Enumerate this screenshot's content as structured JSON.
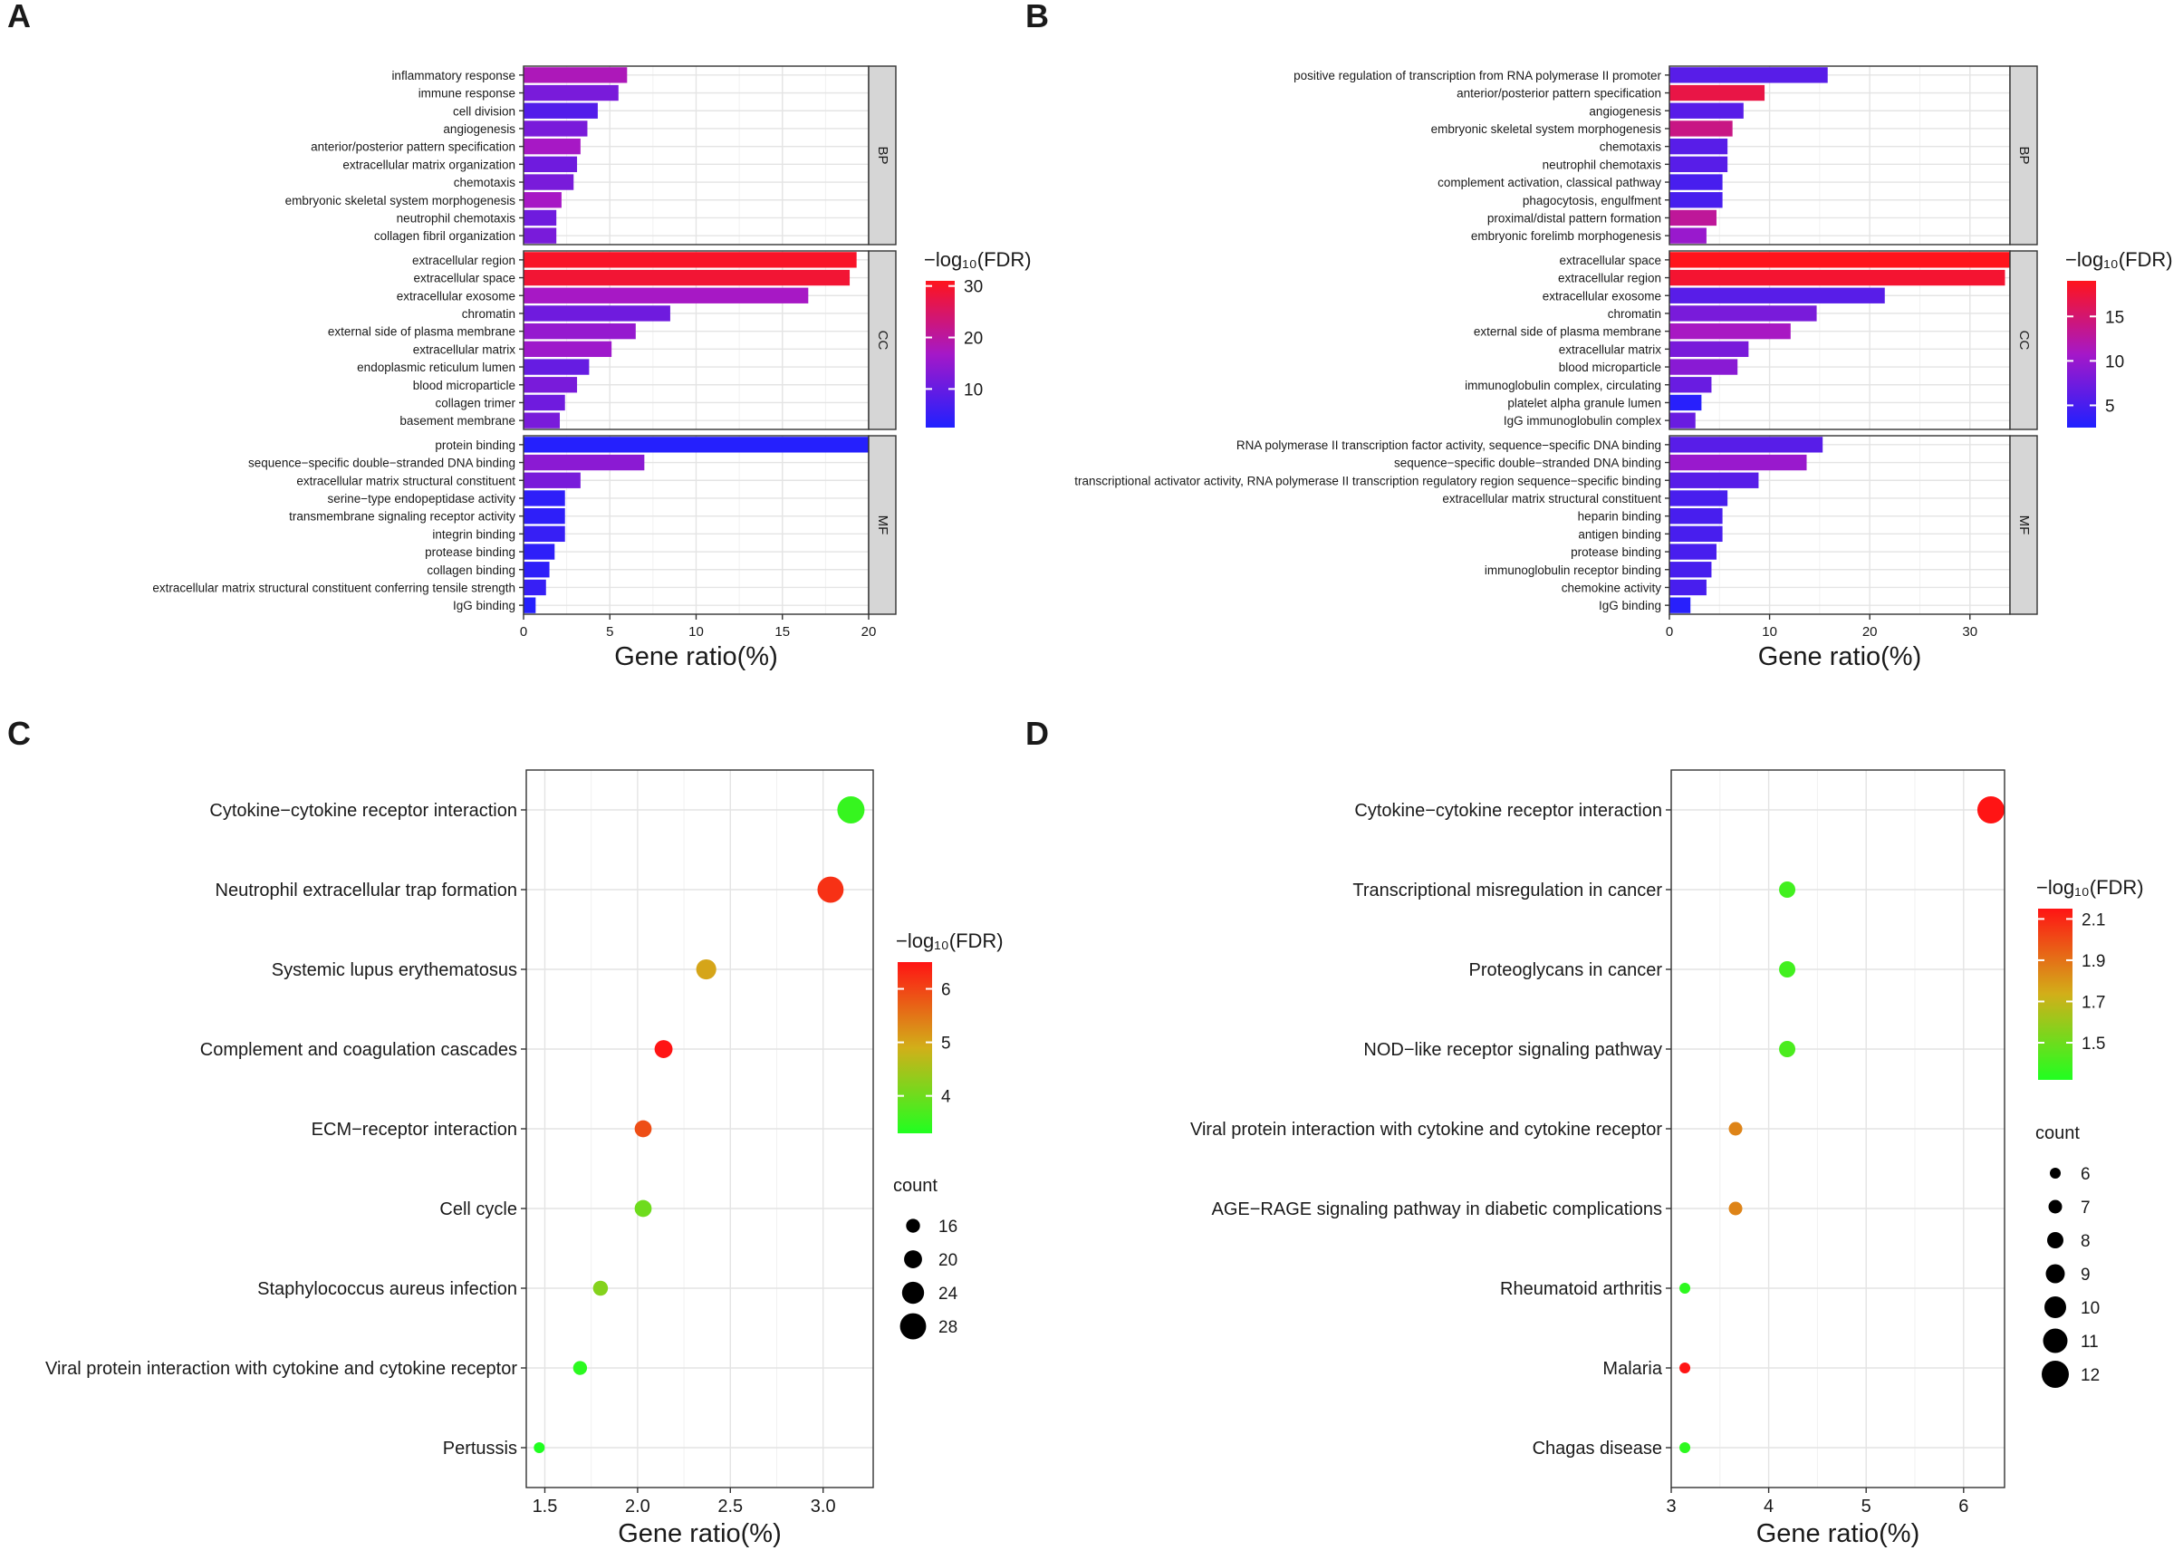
{
  "panels": [
    {
      "label": "A",
      "chart_data": {
        "type": "bar",
        "orientation": "horizontal",
        "xlabel": "Gene ratio(%)",
        "xlim": [
          0,
          20
        ],
        "xticks": [
          0,
          5,
          10,
          15,
          20
        ],
        "color_legend": {
          "title": "−log₁₀(FDR)",
          "range": [
            2.5,
            31
          ],
          "ticks": [
            10,
            20,
            30
          ]
        },
        "facets": [
          {
            "name": "BP",
            "items": [
              {
                "term": "inflammatory response",
                "ratio": 6.0,
                "log_fdr": 18
              },
              {
                "term": "immune response",
                "ratio": 5.5,
                "log_fdr": 12
              },
              {
                "term": "cell division",
                "ratio": 4.3,
                "log_fdr": 8
              },
              {
                "term": "angiogenesis",
                "ratio": 3.7,
                "log_fdr": 12
              },
              {
                "term": "anterior/posterior pattern specification",
                "ratio": 3.3,
                "log_fdr": 17
              },
              {
                "term": "extracellular matrix organization",
                "ratio": 3.1,
                "log_fdr": 11
              },
              {
                "term": "chemotaxis",
                "ratio": 2.9,
                "log_fdr": 12
              },
              {
                "term": "embryonic skeletal system morphogenesis",
                "ratio": 2.2,
                "log_fdr": 17
              },
              {
                "term": "neutrophil chemotaxis",
                "ratio": 1.9,
                "log_fdr": 11
              },
              {
                "term": "collagen fibril organization",
                "ratio": 1.9,
                "log_fdr": 12
              }
            ]
          },
          {
            "name": "CC",
            "items": [
              {
                "term": "extracellular region",
                "ratio": 19.3,
                "log_fdr": 30
              },
              {
                "term": "extracellular space",
                "ratio": 18.9,
                "log_fdr": 29
              },
              {
                "term": "extracellular exosome",
                "ratio": 16.5,
                "log_fdr": 17
              },
              {
                "term": "chromatin",
                "ratio": 8.5,
                "log_fdr": 11
              },
              {
                "term": "external side of plasma membrane",
                "ratio": 6.5,
                "log_fdr": 15
              },
              {
                "term": "extracellular matrix",
                "ratio": 5.1,
                "log_fdr": 16
              },
              {
                "term": "endoplasmic reticulum lumen",
                "ratio": 3.8,
                "log_fdr": 10
              },
              {
                "term": "blood microparticle",
                "ratio": 3.1,
                "log_fdr": 12
              },
              {
                "term": "collagen trimer",
                "ratio": 2.4,
                "log_fdr": 11
              },
              {
                "term": "basement membrane",
                "ratio": 2.1,
                "log_fdr": 12
              }
            ]
          },
          {
            "name": "MF",
            "items": [
              {
                "term": "protein binding",
                "ratio": 20.0,
                "log_fdr": 3
              },
              {
                "term": "sequence−specific double−stranded DNA binding",
                "ratio": 7.0,
                "log_fdr": 14
              },
              {
                "term": "extracellular matrix structural constituent",
                "ratio": 3.3,
                "log_fdr": 12
              },
              {
                "term": "serine−type endopeptidase activity",
                "ratio": 2.4,
                "log_fdr": 4
              },
              {
                "term": "transmembrane signaling receptor activity",
                "ratio": 2.4,
                "log_fdr": 4
              },
              {
                "term": "integrin binding",
                "ratio": 2.4,
                "log_fdr": 5
              },
              {
                "term": "protease binding",
                "ratio": 1.8,
                "log_fdr": 4
              },
              {
                "term": "collagen binding",
                "ratio": 1.5,
                "log_fdr": 4
              },
              {
                "term": "extracellular matrix structural constituent conferring tensile strength",
                "ratio": 1.3,
                "log_fdr": 5
              },
              {
                "term": "IgG binding",
                "ratio": 0.7,
                "log_fdr": 3
              }
            ]
          }
        ]
      }
    },
    {
      "label": "B",
      "chart_data": {
        "type": "bar",
        "orientation": "horizontal",
        "xlabel": "Gene ratio(%)",
        "xlim": [
          0,
          34
        ],
        "xticks": [
          0,
          10,
          20,
          30
        ],
        "color_legend": {
          "title": "−log₁₀(FDR)",
          "range": [
            2.5,
            19
          ],
          "ticks": [
            5,
            10,
            15
          ]
        },
        "facets": [
          {
            "name": "BP",
            "items": [
              {
                "term": "positive regulation of transcription from RNA polymerase II promoter",
                "ratio": 15.8,
                "log_fdr": 6
              },
              {
                "term": "anterior/posterior pattern specification",
                "ratio": 9.5,
                "log_fdr": 17
              },
              {
                "term": "angiogenesis",
                "ratio": 7.4,
                "log_fdr": 6
              },
              {
                "term": "embryonic skeletal system morphogenesis",
                "ratio": 6.3,
                "log_fdr": 14
              },
              {
                "term": "chemotaxis",
                "ratio": 5.8,
                "log_fdr": 6
              },
              {
                "term": "neutrophil chemotaxis",
                "ratio": 5.8,
                "log_fdr": 6
              },
              {
                "term": "complement activation, classical pathway",
                "ratio": 5.3,
                "log_fdr": 5
              },
              {
                "term": "phagocytosis, engulfment",
                "ratio": 5.3,
                "log_fdr": 5
              },
              {
                "term": "proximal/distal pattern formation",
                "ratio": 4.7,
                "log_fdr": 13
              },
              {
                "term": "embryonic forelimb morphogenesis",
                "ratio": 3.7,
                "log_fdr": 10
              }
            ]
          },
          {
            "name": "CC",
            "items": [
              {
                "term": "extracellular space",
                "ratio": 34.0,
                "log_fdr": 19
              },
              {
                "term": "extracellular region",
                "ratio": 33.5,
                "log_fdr": 18
              },
              {
                "term": "extracellular exosome",
                "ratio": 21.5,
                "log_fdr": 6
              },
              {
                "term": "chromatin",
                "ratio": 14.7,
                "log_fdr": 8
              },
              {
                "term": "external side of plasma membrane",
                "ratio": 12.1,
                "log_fdr": 11
              },
              {
                "term": "extracellular matrix",
                "ratio": 7.9,
                "log_fdr": 8
              },
              {
                "term": "blood microparticle",
                "ratio": 6.8,
                "log_fdr": 9
              },
              {
                "term": "immunoglobulin complex, circulating",
                "ratio": 4.2,
                "log_fdr": 7
              },
              {
                "term": "platelet alpha granule lumen",
                "ratio": 3.2,
                "log_fdr": 3
              },
              {
                "term": "IgG immunoglobulin complex",
                "ratio": 2.6,
                "log_fdr": 7
              }
            ]
          },
          {
            "name": "MF",
            "items": [
              {
                "term": "RNA polymerase II transcription factor activity, sequence−specific DNA binding",
                "ratio": 15.3,
                "log_fdr": 6
              },
              {
                "term": "sequence−specific double−stranded DNA binding",
                "ratio": 13.7,
                "log_fdr": 10
              },
              {
                "term": "transcriptional activator activity, RNA polymerase II transcription regulatory region sequence−specific binding",
                "ratio": 8.9,
                "log_fdr": 6
              },
              {
                "term": "extracellular matrix structural constituent",
                "ratio": 5.8,
                "log_fdr": 5
              },
              {
                "term": "heparin binding",
                "ratio": 5.3,
                "log_fdr": 5
              },
              {
                "term": "antigen binding",
                "ratio": 5.3,
                "log_fdr": 5
              },
              {
                "term": "protease binding",
                "ratio": 4.7,
                "log_fdr": 5
              },
              {
                "term": "immunoglobulin receptor binding",
                "ratio": 4.2,
                "log_fdr": 5
              },
              {
                "term": "chemokine activity",
                "ratio": 3.7,
                "log_fdr": 5
              },
              {
                "term": "IgG binding",
                "ratio": 2.1,
                "log_fdr": 3
              }
            ]
          }
        ]
      }
    },
    {
      "label": "C",
      "chart_data": {
        "type": "scatter",
        "xlabel": "Gene ratio(%)",
        "xlim": [
          1.4,
          3.27
        ],
        "xticks": [
          1.5,
          2.0,
          2.5,
          3.0
        ],
        "tick_labels": [
          "1.5",
          "2.0",
          "2.5",
          "3.0"
        ],
        "color_legend": {
          "title": "−log₁₀(FDR)",
          "range": [
            3.3,
            6.5
          ],
          "ticks": [
            4,
            5,
            6
          ]
        },
        "size_legend": {
          "title": "count",
          "values": [
            16,
            20,
            24,
            28
          ]
        },
        "points": [
          {
            "term": "Cytokine−cytokine receptor interaction",
            "ratio": 3.15,
            "log_fdr": 3.5,
            "count": 29
          },
          {
            "term": "Neutrophil extracellular trap formation",
            "ratio": 3.04,
            "log_fdr": 6.2,
            "count": 28
          },
          {
            "term": "Systemic lupus erythematosus",
            "ratio": 2.37,
            "log_fdr": 5.0,
            "count": 22
          },
          {
            "term": "Complement and coagulation cascades",
            "ratio": 2.14,
            "log_fdr": 6.5,
            "count": 20
          },
          {
            "term": "ECM−receptor interaction",
            "ratio": 2.03,
            "log_fdr": 5.9,
            "count": 19
          },
          {
            "term": "Cell cycle",
            "ratio": 2.03,
            "log_fdr": 4.0,
            "count": 19
          },
          {
            "term": "Staphylococcus aureus infection",
            "ratio": 1.8,
            "log_fdr": 4.2,
            "count": 17
          },
          {
            "term": "Viral protein interaction with cytokine and cytokine receptor",
            "ratio": 1.69,
            "log_fdr": 3.4,
            "count": 16
          },
          {
            "term": "Pertussis",
            "ratio": 1.47,
            "log_fdr": 3.3,
            "count": 13
          }
        ]
      }
    },
    {
      "label": "D",
      "chart_data": {
        "type": "scatter",
        "xlabel": "Gene ratio(%)",
        "xlim": [
          3.0,
          6.42
        ],
        "xticks": [
          3,
          4,
          5,
          6
        ],
        "tick_labels": [
          "3",
          "4",
          "5",
          "6"
        ],
        "color_legend": {
          "title": "−log₁₀(FDR)",
          "range": [
            1.32,
            2.15
          ],
          "ticks": [
            1.5,
            1.7,
            1.9,
            2.1
          ]
        },
        "size_legend": {
          "title": "count",
          "values": [
            6,
            7,
            8,
            9,
            10,
            11,
            12
          ]
        },
        "points": [
          {
            "term": "Cytokine−cytokine receptor interaction",
            "ratio": 6.28,
            "log_fdr": 2.15,
            "count": 12
          },
          {
            "term": "Transcriptional misregulation in cancer",
            "ratio": 4.19,
            "log_fdr": 1.4,
            "count": 8
          },
          {
            "term": "Proteoglycans in cancer",
            "ratio": 4.19,
            "log_fdr": 1.4,
            "count": 8
          },
          {
            "term": "NOD−like receptor signaling pathway",
            "ratio": 4.19,
            "log_fdr": 1.42,
            "count": 8
          },
          {
            "term": "Viral protein interaction with cytokine and cytokine receptor",
            "ratio": 3.66,
            "log_fdr": 1.85,
            "count": 7
          },
          {
            "term": "AGE−RAGE signaling pathway in diabetic complications",
            "ratio": 3.66,
            "log_fdr": 1.85,
            "count": 7
          },
          {
            "term": "Rheumatoid arthritis",
            "ratio": 3.14,
            "log_fdr": 1.35,
            "count": 6
          },
          {
            "term": "Malaria",
            "ratio": 3.14,
            "log_fdr": 2.15,
            "count": 6
          },
          {
            "term": "Chagas disease",
            "ratio": 3.14,
            "log_fdr": 1.35,
            "count": 6
          }
        ]
      }
    }
  ]
}
